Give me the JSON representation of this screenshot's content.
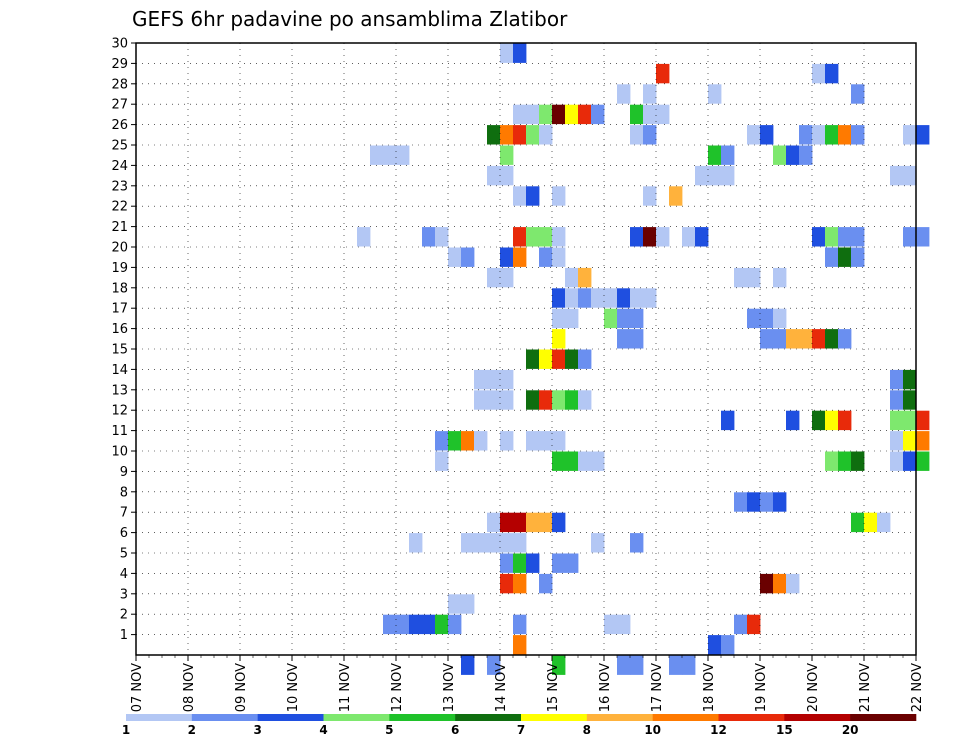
{
  "chart_data": {
    "type": "heatmap",
    "title": "GEFS 6hr padavine po ansamblima Zlatibor",
    "x_start_day": 7,
    "x_end_day": 22,
    "x_ticks": [
      "07 NOV",
      "08 NOV",
      "09 NOV",
      "10 NOV",
      "11 NOV",
      "12 NOV",
      "13 NOV",
      "14 NOV",
      "15 NOV",
      "16 NOV",
      "17 NOV",
      "18 NOV",
      "19 NOV",
      "20 NOV",
      "21 NOV",
      "22 NOV"
    ],
    "y_ticks": [
      "1",
      "2",
      "3",
      "4",
      "5",
      "6",
      "7",
      "8",
      "9",
      "10",
      "11",
      "12",
      "13",
      "14",
      "15",
      "16",
      "17",
      "18",
      "19",
      "20",
      "21",
      "22",
      "23",
      "24",
      "25",
      "26",
      "27",
      "28",
      "29",
      "30"
    ],
    "grid": true,
    "colorbar": {
      "position": "bottom",
      "labels": [
        "1",
        "2",
        "3",
        "4",
        "5",
        "6",
        "7",
        "8",
        "10",
        "12",
        "15",
        "20"
      ],
      "colors": [
        "#b3c7f4",
        "#6a8ff0",
        "#1f4fe0",
        "#7ee86e",
        "#1fc22a",
        "#0f6e0f",
        "#ffff00",
        "#ffb23c",
        "#ff7a00",
        "#e82a0a",
        "#b40000",
        "#6a0000"
      ]
    },
    "cells": [
      [
        28,
        0,
        30
      ],
      [
        29,
        2,
        30
      ],
      [
        25,
        2,
        0
      ],
      [
        27,
        1,
        0
      ],
      [
        32,
        4,
        0
      ],
      [
        38,
        1,
        0
      ],
      [
        41,
        1,
        0
      ],
      [
        42,
        1,
        0
      ],
      [
        37,
        1,
        0
      ],
      [
        29,
        8,
        1
      ],
      [
        44,
        2,
        1
      ],
      [
        45,
        1,
        1
      ],
      [
        19,
        1,
        2
      ],
      [
        20,
        1,
        2
      ],
      [
        21,
        2,
        2
      ],
      [
        22,
        2,
        2
      ],
      [
        23,
        4,
        2
      ],
      [
        24,
        1,
        2
      ],
      [
        29,
        1,
        2
      ],
      [
        36,
        0,
        2
      ],
      [
        37,
        0,
        2
      ],
      [
        46,
        1,
        2
      ],
      [
        47,
        9,
        2
      ],
      [
        24,
        0,
        3
      ],
      [
        25,
        0,
        3
      ],
      [
        28,
        9,
        4
      ],
      [
        29,
        8,
        4
      ],
      [
        31,
        1,
        4
      ],
      [
        48,
        11,
        4
      ],
      [
        49,
        8,
        4
      ],
      [
        50,
        0,
        4
      ],
      [
        28,
        1,
        5
      ],
      [
        29,
        4,
        5
      ],
      [
        30,
        2,
        5
      ],
      [
        32,
        1,
        5
      ],
      [
        33,
        1,
        5
      ],
      [
        21,
        0,
        6
      ],
      [
        25,
        0,
        6
      ],
      [
        26,
        0,
        6
      ],
      [
        27,
        0,
        6
      ],
      [
        28,
        0,
        6
      ],
      [
        29,
        0,
        6
      ],
      [
        35,
        0,
        6
      ],
      [
        38,
        1,
        6
      ],
      [
        27,
        0,
        7
      ],
      [
        28,
        10,
        7
      ],
      [
        29,
        10,
        7
      ],
      [
        30,
        7,
        7
      ],
      [
        31,
        7,
        7
      ],
      [
        32,
        2,
        7
      ],
      [
        55,
        4,
        7
      ],
      [
        56,
        6,
        7
      ],
      [
        57,
        0,
        7
      ],
      [
        46,
        1,
        8
      ],
      [
        47,
        2,
        8
      ],
      [
        48,
        1,
        8
      ],
      [
        49,
        2,
        8
      ],
      [
        23,
        0,
        10
      ],
      [
        32,
        4,
        10
      ],
      [
        33,
        4,
        10
      ],
      [
        34,
        0,
        10
      ],
      [
        35,
        0,
        10
      ],
      [
        53,
        3,
        10
      ],
      [
        54,
        4,
        10
      ],
      [
        55,
        5,
        10
      ],
      [
        58,
        0,
        10
      ],
      [
        59,
        2,
        10
      ],
      [
        60,
        4,
        10
      ],
      [
        23,
        1,
        11
      ],
      [
        24,
        4,
        11
      ],
      [
        25,
        8,
        11
      ],
      [
        26,
        0,
        11
      ],
      [
        28,
        0,
        11
      ],
      [
        30,
        0,
        11
      ],
      [
        31,
        0,
        11
      ],
      [
        32,
        0,
        11
      ],
      [
        58,
        0,
        11
      ],
      [
        59,
        6,
        11
      ],
      [
        60,
        8,
        11
      ],
      [
        45,
        2,
        12
      ],
      [
        50,
        2,
        12
      ],
      [
        52,
        5,
        12
      ],
      [
        53,
        6,
        12
      ],
      [
        54,
        9,
        12
      ],
      [
        58,
        3,
        12
      ],
      [
        59,
        3,
        12
      ],
      [
        60,
        9,
        12
      ],
      [
        26,
        0,
        13
      ],
      [
        27,
        0,
        13
      ],
      [
        28,
        0,
        13
      ],
      [
        30,
        5,
        13
      ],
      [
        31,
        9,
        13
      ],
      [
        32,
        3,
        13
      ],
      [
        33,
        4,
        13
      ],
      [
        34,
        0,
        13
      ],
      [
        58,
        1,
        13
      ],
      [
        59,
        5,
        13
      ],
      [
        26,
        0,
        14
      ],
      [
        27,
        0,
        14
      ],
      [
        28,
        0,
        14
      ],
      [
        58,
        1,
        14
      ],
      [
        59,
        5,
        14
      ],
      [
        30,
        5,
        15
      ],
      [
        31,
        6,
        15
      ],
      [
        32,
        9,
        15
      ],
      [
        33,
        5,
        15
      ],
      [
        34,
        1,
        15
      ],
      [
        32,
        6,
        16
      ],
      [
        37,
        1,
        16
      ],
      [
        38,
        1,
        16
      ],
      [
        48,
        1,
        16
      ],
      [
        49,
        1,
        16
      ],
      [
        50,
        7,
        16
      ],
      [
        51,
        7,
        16
      ],
      [
        52,
        9,
        16
      ],
      [
        53,
        5,
        16
      ],
      [
        54,
        1,
        16
      ],
      [
        32,
        0,
        17
      ],
      [
        33,
        0,
        17
      ],
      [
        36,
        3,
        17
      ],
      [
        37,
        1,
        17
      ],
      [
        38,
        1,
        17
      ],
      [
        47,
        1,
        17
      ],
      [
        48,
        1,
        17
      ],
      [
        49,
        0,
        17
      ],
      [
        32,
        2,
        18
      ],
      [
        33,
        0,
        18
      ],
      [
        34,
        1,
        18
      ],
      [
        35,
        0,
        18
      ],
      [
        36,
        0,
        18
      ],
      [
        37,
        2,
        18
      ],
      [
        38,
        0,
        18
      ],
      [
        39,
        0,
        18
      ],
      [
        27,
        0,
        19
      ],
      [
        28,
        0,
        19
      ],
      [
        33,
        0,
        19
      ],
      [
        34,
        7,
        19
      ],
      [
        46,
        0,
        19
      ],
      [
        47,
        0,
        19
      ],
      [
        49,
        0,
        19
      ],
      [
        28,
        2,
        20
      ],
      [
        29,
        8,
        20
      ],
      [
        24,
        0,
        20
      ],
      [
        25,
        1,
        20
      ],
      [
        31,
        1,
        20
      ],
      [
        32,
        0,
        20
      ],
      [
        53,
        1,
        20
      ],
      [
        54,
        5,
        20
      ],
      [
        55,
        1,
        20
      ],
      [
        17,
        0,
        21
      ],
      [
        22,
        1,
        21
      ],
      [
        23,
        0,
        21
      ],
      [
        29,
        9,
        21
      ],
      [
        30,
        3,
        21
      ],
      [
        31,
        3,
        21
      ],
      [
        32,
        0,
        21
      ],
      [
        38,
        2,
        21
      ],
      [
        39,
        11,
        21
      ],
      [
        40,
        0,
        21
      ],
      [
        42,
        0,
        21
      ],
      [
        43,
        2,
        21
      ],
      [
        52,
        2,
        21
      ],
      [
        53,
        3,
        21
      ],
      [
        54,
        1,
        21
      ],
      [
        55,
        1,
        21
      ],
      [
        59,
        1,
        21
      ],
      [
        60,
        1,
        21
      ],
      [
        29,
        0,
        23
      ],
      [
        30,
        2,
        23
      ],
      [
        32,
        0,
        23
      ],
      [
        39,
        0,
        23
      ],
      [
        41,
        7,
        23
      ],
      [
        27,
        0,
        24
      ],
      [
        28,
        0,
        24
      ],
      [
        43,
        0,
        24
      ],
      [
        44,
        0,
        24
      ],
      [
        45,
        0,
        24
      ],
      [
        58,
        0,
        24
      ],
      [
        59,
        0,
        24
      ],
      [
        18,
        0,
        25
      ],
      [
        19,
        0,
        25
      ],
      [
        20,
        0,
        25
      ],
      [
        28,
        3,
        25
      ],
      [
        44,
        4,
        25
      ],
      [
        45,
        1,
        25
      ],
      [
        49,
        3,
        25
      ],
      [
        50,
        2,
        25
      ],
      [
        51,
        1,
        25
      ],
      [
        27,
        5,
        26
      ],
      [
        28,
        8,
        26
      ],
      [
        29,
        9,
        26
      ],
      [
        30,
        3,
        26
      ],
      [
        31,
        0,
        26
      ],
      [
        38,
        0,
        26
      ],
      [
        39,
        1,
        26
      ],
      [
        47,
        0,
        26
      ],
      [
        48,
        2,
        26
      ],
      [
        51,
        1,
        26
      ],
      [
        52,
        0,
        26
      ],
      [
        53,
        4,
        26
      ],
      [
        54,
        8,
        26
      ],
      [
        55,
        1,
        26
      ],
      [
        59,
        0,
        26
      ],
      [
        60,
        2,
        26
      ],
      [
        29,
        0,
        27
      ],
      [
        30,
        0,
        27
      ],
      [
        31,
        3,
        27
      ],
      [
        32,
        11,
        27
      ],
      [
        33,
        6,
        27
      ],
      [
        34,
        9,
        27
      ],
      [
        35,
        1,
        27
      ],
      [
        38,
        4,
        27
      ],
      [
        39,
        0,
        27
      ],
      [
        40,
        0,
        27
      ],
      [
        37,
        0,
        28
      ],
      [
        39,
        0,
        28
      ],
      [
        44,
        0,
        28
      ],
      [
        55,
        1,
        28
      ],
      [
        40,
        9,
        29
      ],
      [
        52,
        0,
        29
      ],
      [
        53,
        2,
        29
      ]
    ]
  }
}
